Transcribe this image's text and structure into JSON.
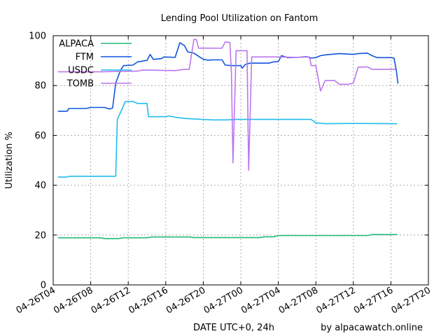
{
  "chart_data": {
    "type": "line",
    "title": "Lending Pool Utilization on Fantom",
    "xlabel": "DATE UTC+0, 24h",
    "ylabel": "Utilization %",
    "credit": "by alpacawatch.online",
    "xlim": [
      "2022-04-26T04:00",
      "2022-04-27T20:00"
    ],
    "ylim": [
      0,
      100
    ],
    "x_ticks": [
      "04-26T04",
      "04-26T08",
      "04-26T12",
      "04-26T16",
      "04-26T20",
      "04-27T00",
      "04-27T04",
      "04-27T08",
      "04-27T12",
      "04-27T16",
      "04-27T20"
    ],
    "y_ticks": [
      "0",
      "20",
      "40",
      "60",
      "80",
      "100"
    ],
    "grid": true,
    "legend_position": "top-left",
    "series": [
      {
        "name": "ALPACA",
        "color": "#22bb77",
        "points": [
          [
            "2022-04-26T04:30",
            18.9
          ],
          [
            "2022-04-26T09:00",
            18.9
          ],
          [
            "2022-04-26T09:30",
            18.6
          ],
          [
            "2022-04-26T11:00",
            18.6
          ],
          [
            "2022-04-26T11:30",
            18.9
          ],
          [
            "2022-04-26T14:00",
            18.9
          ],
          [
            "2022-04-26T14:30",
            19.2
          ],
          [
            "2022-04-26T18:30",
            19.2
          ],
          [
            "2022-04-26T19:00",
            19.0
          ],
          [
            "2022-04-27T02:00",
            19.0
          ],
          [
            "2022-04-27T02:30",
            19.3
          ],
          [
            "2022-04-27T03:30",
            19.3
          ],
          [
            "2022-04-27T04:00",
            19.8
          ],
          [
            "2022-04-27T10:00",
            19.8
          ],
          [
            "2022-04-27T13:30",
            19.8
          ],
          [
            "2022-04-27T14:00",
            20.2
          ],
          [
            "2022-04-27T16:40",
            20.2
          ]
        ]
      },
      {
        "name": "FTM",
        "color": "#1155dd",
        "points": [
          [
            "2022-04-26T04:30",
            69.7
          ],
          [
            "2022-04-26T05:30",
            69.7
          ],
          [
            "2022-04-26T05:40",
            70.8
          ],
          [
            "2022-04-26T07:30",
            70.8
          ],
          [
            "2022-04-26T08:00",
            71.2
          ],
          [
            "2022-04-26T09:30",
            71.2
          ],
          [
            "2022-04-26T10:00",
            70.6
          ],
          [
            "2022-04-26T10:20",
            71.0
          ],
          [
            "2022-04-26T10:40",
            81.0
          ],
          [
            "2022-04-26T11:10",
            86.0
          ],
          [
            "2022-04-26T11:30",
            88.0
          ],
          [
            "2022-04-26T12:30",
            88.2
          ],
          [
            "2022-04-26T13:00",
            89.5
          ],
          [
            "2022-04-26T13:30",
            89.8
          ],
          [
            "2022-04-26T14:00",
            90.1
          ],
          [
            "2022-04-26T14:20",
            92.5
          ],
          [
            "2022-04-26T14:40",
            90.5
          ],
          [
            "2022-04-26T15:30",
            90.8
          ],
          [
            "2022-04-26T15:50",
            91.5
          ],
          [
            "2022-04-26T17:00",
            91.3
          ],
          [
            "2022-04-26T17:30",
            97.2
          ],
          [
            "2022-04-26T18:00",
            96.0
          ],
          [
            "2022-04-26T18:20",
            93.5
          ],
          [
            "2022-04-26T19:00",
            93.0
          ],
          [
            "2022-04-26T20:00",
            90.5
          ],
          [
            "2022-04-26T20:30",
            90.2
          ],
          [
            "2022-04-26T21:00",
            90.3
          ],
          [
            "2022-04-26T22:00",
            90.3
          ],
          [
            "2022-04-26T22:20",
            88.2
          ],
          [
            "2022-04-26T23:00",
            88.0
          ],
          [
            "2022-04-27T00:00",
            88.0
          ],
          [
            "2022-04-27T00:10",
            87.0
          ],
          [
            "2022-04-27T00:30",
            88.5
          ],
          [
            "2022-04-27T01:00",
            89.0
          ],
          [
            "2022-04-27T03:00",
            89.0
          ],
          [
            "2022-04-27T03:30",
            89.5
          ],
          [
            "2022-04-27T04:00",
            89.6
          ],
          [
            "2022-04-27T04:20",
            92.0
          ],
          [
            "2022-04-27T05:00",
            91.2
          ],
          [
            "2022-04-27T06:00",
            91.3
          ],
          [
            "2022-04-27T07:00",
            91.6
          ],
          [
            "2022-04-27T07:30",
            91.0
          ],
          [
            "2022-04-27T08:00",
            91.2
          ],
          [
            "2022-04-27T08:30",
            92.0
          ],
          [
            "2022-04-27T09:00",
            92.3
          ],
          [
            "2022-04-27T10:30",
            92.8
          ],
          [
            "2022-04-27T12:00",
            92.5
          ],
          [
            "2022-04-27T12:30",
            92.8
          ],
          [
            "2022-04-27T13:30",
            93.0
          ],
          [
            "2022-04-27T14:00",
            92.0
          ],
          [
            "2022-04-27T14:30",
            91.2
          ],
          [
            "2022-04-27T16:00",
            91.2
          ],
          [
            "2022-04-27T16:20",
            91.0
          ],
          [
            "2022-04-27T16:35",
            86.0
          ],
          [
            "2022-04-27T16:45",
            80.8
          ]
        ]
      },
      {
        "name": "USDC",
        "color": "#22bbee",
        "points": [
          [
            "2022-04-26T04:30",
            43.3
          ],
          [
            "2022-04-26T05:30",
            43.3
          ],
          [
            "2022-04-26T05:40",
            43.6
          ],
          [
            "2022-04-26T09:30",
            43.6
          ],
          [
            "2022-04-26T10:40",
            43.6
          ],
          [
            "2022-04-26T10:50",
            66.5
          ],
          [
            "2022-04-26T11:20",
            70.5
          ],
          [
            "2022-04-26T11:40",
            73.5
          ],
          [
            "2022-04-26T12:30",
            73.6
          ],
          [
            "2022-04-26T13:00",
            72.8
          ],
          [
            "2022-04-26T14:00",
            72.8
          ],
          [
            "2022-04-26T14:10",
            67.5
          ],
          [
            "2022-04-26T16:00",
            67.5
          ],
          [
            "2022-04-26T16:20",
            67.8
          ],
          [
            "2022-04-26T17:00",
            67.3
          ],
          [
            "2022-04-26T18:00",
            66.8
          ],
          [
            "2022-04-26T19:30",
            66.5
          ],
          [
            "2022-04-26T21:00",
            66.2
          ],
          [
            "2022-04-26T22:30",
            66.2
          ],
          [
            "2022-04-26T23:30",
            66.4
          ],
          [
            "2022-04-27T07:30",
            66.4
          ],
          [
            "2022-04-27T08:00",
            65.0
          ],
          [
            "2022-04-27T09:00",
            64.7
          ],
          [
            "2022-04-27T12:00",
            64.8
          ],
          [
            "2022-04-27T16:40",
            64.7
          ]
        ]
      },
      {
        "name": "TOMB",
        "color": "#bb77ee",
        "points": [
          [
            "2022-04-26T04:30",
            85.5
          ],
          [
            "2022-04-26T09:00",
            85.5
          ],
          [
            "2022-04-26T13:00",
            85.8
          ],
          [
            "2022-04-26T13:30",
            86.2
          ],
          [
            "2022-04-26T17:00",
            86.0
          ],
          [
            "2022-04-26T18:00",
            86.5
          ],
          [
            "2022-04-26T18:30",
            86.5
          ],
          [
            "2022-04-26T19:00",
            98.5
          ],
          [
            "2022-04-26T19:15",
            98.5
          ],
          [
            "2022-04-26T19:30",
            95.0
          ],
          [
            "2022-04-26T22:00",
            95.0
          ],
          [
            "2022-04-26T22:20",
            97.5
          ],
          [
            "2022-04-26T22:50",
            97.3
          ],
          [
            "2022-04-26T23:00",
            85.0
          ],
          [
            "2022-04-26T23:10",
            49.0
          ],
          [
            "2022-04-26T23:20",
            72.0
          ],
          [
            "2022-04-26T23:30",
            94.0
          ],
          [
            "2022-04-27T00:00",
            94.0
          ],
          [
            "2022-04-27T00:40",
            94.0
          ],
          [
            "2022-04-27T00:50",
            46.0
          ],
          [
            "2022-04-27T01:10",
            91.5
          ],
          [
            "2022-04-27T04:00",
            91.5
          ],
          [
            "2022-04-27T06:00",
            91.3
          ],
          [
            "2022-04-27T07:20",
            91.5
          ],
          [
            "2022-04-27T07:30",
            88.0
          ],
          [
            "2022-04-27T08:00",
            88.0
          ],
          [
            "2022-04-27T08:30",
            77.8
          ],
          [
            "2022-04-27T09:00",
            82.0
          ],
          [
            "2022-04-27T10:00",
            82.0
          ],
          [
            "2022-04-27T10:30",
            80.5
          ],
          [
            "2022-04-27T11:30",
            80.5
          ],
          [
            "2022-04-27T12:00",
            81.0
          ],
          [
            "2022-04-27T12:30",
            87.3
          ],
          [
            "2022-04-27T13:30",
            87.5
          ],
          [
            "2022-04-27T14:00",
            86.5
          ],
          [
            "2022-04-27T16:30",
            86.5
          ]
        ]
      }
    ]
  }
}
